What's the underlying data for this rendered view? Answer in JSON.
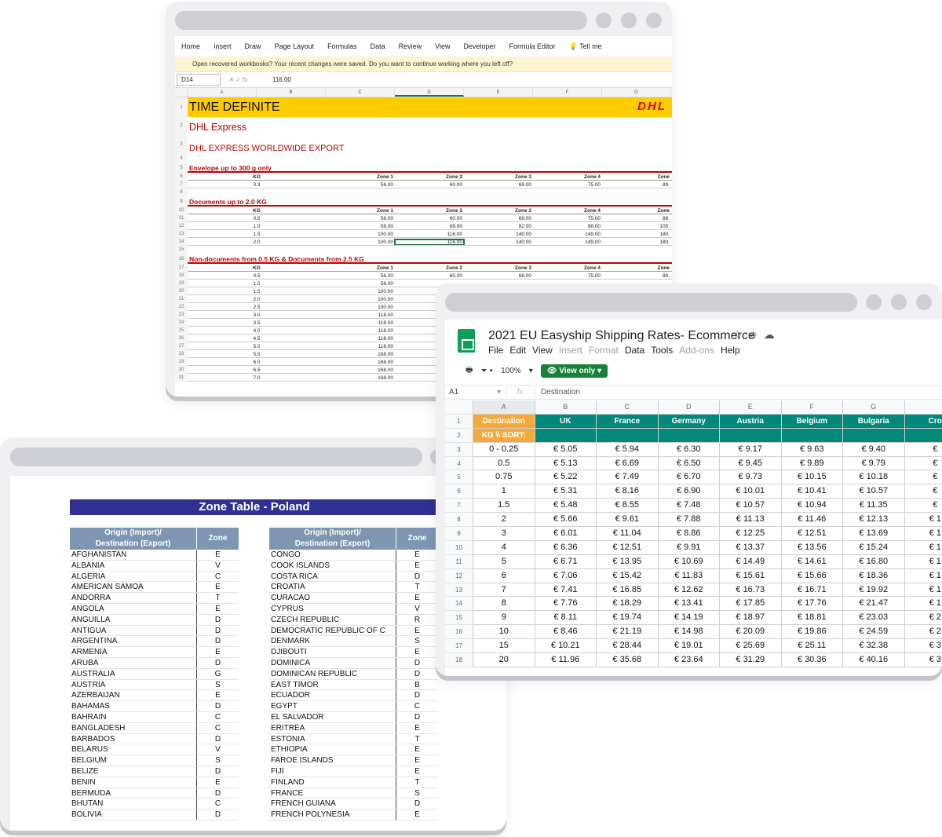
{
  "excel": {
    "ribbon": [
      "Home",
      "Insert",
      "Draw",
      "Page Layout",
      "Formulas",
      "Data",
      "Review",
      "View",
      "Developer",
      "Formula Editor",
      "Tell me"
    ],
    "message": "Open recovered workbooks?  Your recent changes were saved. Do you want to continue working where you left off?",
    "cell_ref": "D14",
    "formula_value": "116.00",
    "columns": [
      "A",
      "B",
      "C",
      "D",
      "E",
      "F",
      "G"
    ],
    "title": "TIME DEFINITE",
    "logo": "DHL",
    "subtitle": "DHL Express",
    "subtitle2": "DHL EXPRESS WORLDWIDE EXPORT",
    "sec1": "Envelope up to 300 g only",
    "sec2": "Documents up to 2.0 KG",
    "sec3": "Non-documents from 0.5 KG & Documents from 2.5 KG",
    "hdr": [
      "KG",
      "Zone 1",
      "Zone 2",
      "Zone 3",
      "Zone 4",
      "Zone"
    ],
    "env_row": [
      "0.3",
      "56.00",
      "60.00",
      "69.00",
      "75.00",
      "89."
    ],
    "doc_rows": [
      [
        "0.5",
        "56.00",
        "60.00",
        "69.00",
        "75.00",
        "89."
      ],
      [
        "1.0",
        "58.00",
        "69.00",
        "82.00",
        "88.00",
        "105."
      ],
      [
        "1.5",
        "100.00",
        "116.00",
        "140.00",
        "149.00",
        "180."
      ],
      [
        "2.0",
        "100.00",
        "116.00",
        "140.00",
        "149.00",
        "180."
      ]
    ],
    "nondoc_first": [
      "0.5",
      "56.00",
      "60.00",
      "69.00",
      "75.00",
      "89."
    ],
    "nondoc_rows": [
      [
        "1.0",
        "58.00"
      ],
      [
        "1.5",
        "100.00"
      ],
      [
        "2.0",
        "100.00"
      ],
      [
        "2.5",
        "100.00"
      ],
      [
        "3.0",
        "118.00"
      ],
      [
        "3.5",
        "118.00"
      ],
      [
        "4.0",
        "118.00"
      ],
      [
        "4.5",
        "118.00"
      ],
      [
        "5.0",
        "118.00"
      ],
      [
        "5.5",
        "168.00"
      ],
      [
        "6.0",
        "168.00"
      ],
      [
        "6.5",
        "168.00"
      ],
      [
        "7.0",
        "168.00"
      ]
    ],
    "row_numbers": [
      "1",
      "2",
      "3",
      "4",
      "5",
      "6",
      "7",
      "8",
      "9",
      "10",
      "11",
      "12",
      "13",
      "14",
      "15",
      "16",
      "17",
      "18",
      "19",
      "20",
      "21",
      "22",
      "23",
      "24",
      "25",
      "26",
      "27",
      "28",
      "29",
      "30",
      "31"
    ]
  },
  "zone": {
    "title": "Zone Table - Poland",
    "header_origin_1": "Origin (Import)/",
    "header_origin_2": "Destination (Export)",
    "header_zone": "Zone",
    "left": [
      [
        "AFGHANISTAN",
        "E"
      ],
      [
        "ALBANIA",
        "V"
      ],
      [
        "ALGERIA",
        "C"
      ],
      [
        "AMERICAN SAMOA",
        "E"
      ],
      [
        "ANDORRA",
        "T"
      ],
      [
        "ANGOLA",
        "E"
      ],
      [
        "ANGUILLA",
        "D"
      ],
      [
        "ANTIGUA",
        "D"
      ],
      [
        "ARGENTINA",
        "D"
      ],
      [
        "ARMENIA",
        "E"
      ],
      [
        "ARUBA",
        "D"
      ],
      [
        "AUSTRALIA",
        "G"
      ],
      [
        "AUSTRIA",
        "S"
      ],
      [
        "AZERBAIJAN",
        "E"
      ],
      [
        "BAHAMAS",
        "D"
      ],
      [
        "BAHRAIN",
        "C"
      ],
      [
        "BANGLADESH",
        "C"
      ],
      [
        "BARBADOS",
        "D"
      ],
      [
        "BELARUS",
        "V"
      ],
      [
        "BELGIUM",
        "S"
      ],
      [
        "BELIZE",
        "D"
      ],
      [
        "BENIN",
        "E"
      ],
      [
        "BERMUDA",
        "D"
      ],
      [
        "BHUTAN",
        "C"
      ],
      [
        "BOLIVIA",
        "D"
      ]
    ],
    "right": [
      [
        "CONGO",
        "E"
      ],
      [
        "COOK ISLANDS",
        "E"
      ],
      [
        "COSTA RICA",
        "D"
      ],
      [
        "CROATIA",
        "T"
      ],
      [
        "CURACAO",
        "E"
      ],
      [
        "CYPRUS",
        "V"
      ],
      [
        "CZECH REPUBLIC",
        "R"
      ],
      [
        "DEMOCRATIC REPUBLIC OF C",
        "E"
      ],
      [
        "DENMARK",
        "S"
      ],
      [
        "DJIBOUTI",
        "E"
      ],
      [
        "DOMINICA",
        "D"
      ],
      [
        "DOMINICAN REPUBLIC",
        "D"
      ],
      [
        "EAST TIMOR",
        "B"
      ],
      [
        "ECUADOR",
        "D"
      ],
      [
        "EGYPT",
        "C"
      ],
      [
        "EL SALVADOR",
        "D"
      ],
      [
        "ERITREA",
        "E"
      ],
      [
        "ESTONIA",
        "T"
      ],
      [
        "ETHIOPIA",
        "E"
      ],
      [
        "FAROE ISLANDS",
        "E"
      ],
      [
        "FIJI",
        "E"
      ],
      [
        "FINLAND",
        "T"
      ],
      [
        "FRANCE",
        "S"
      ],
      [
        "FRENCH GUIANA",
        "D"
      ],
      [
        "FRENCH POLYNESIA",
        "E"
      ]
    ]
  },
  "sheets": {
    "title": "2021 EU Easyship Shipping Rates- Ecommerce",
    "menu": [
      "File",
      "Edit",
      "View",
      "Insert",
      "Format",
      "Data",
      "Tools",
      "Add-ons",
      "Help"
    ],
    "menu_disabled": [
      "Insert",
      "Format",
      "Add-ons"
    ],
    "zoom": "100%",
    "view_only": "View only",
    "cell_ref": "A1",
    "formula_value": "Destination",
    "columns": [
      "A",
      "B",
      "C",
      "D",
      "E",
      "F",
      "G",
      ""
    ],
    "header": [
      "Destination",
      "UK",
      "France",
      "Germany",
      "Austria",
      "Belgium",
      "Bulgaria",
      "Cro"
    ],
    "subheader": "KG  \\\\  SORT:",
    "rows": [
      [
        "0 - 0.25",
        "€ 5.05",
        "€ 5.94",
        "€ 6.30",
        "€ 9.17",
        "€ 9.63",
        "€ 9.40",
        "€"
      ],
      [
        "0.5",
        "€ 5.13",
        "€ 6.69",
        "€ 6.50",
        "€ 9.45",
        "€ 9.89",
        "€ 9.79",
        "€"
      ],
      [
        "0.75",
        "€ 5.22",
        "€ 7.49",
        "€ 6.70",
        "€ 9.73",
        "€ 10.15",
        "€ 10.18",
        "€"
      ],
      [
        "1",
        "€ 5.31",
        "€ 8.16",
        "€ 6.90",
        "€ 10.01",
        "€ 10.41",
        "€ 10.57",
        "€"
      ],
      [
        "1.5",
        "€ 5.48",
        "€ 8.55",
        "€ 7.48",
        "€ 10.57",
        "€ 10.94",
        "€ 11.35",
        "€"
      ],
      [
        "2",
        "€ 5.66",
        "€ 9.61",
        "€ 7.88",
        "€ 11.13",
        "€ 11.46",
        "€ 12.13",
        "€ 1"
      ],
      [
        "3",
        "€ 6.01",
        "€ 11.04",
        "€ 8.86",
        "€ 12.25",
        "€ 12.51",
        "€ 13.69",
        "€ 1"
      ],
      [
        "4",
        "€ 6.36",
        "€ 12.51",
        "€ 9.91",
        "€ 13.37",
        "€ 13.56",
        "€ 15.24",
        "€ 1"
      ],
      [
        "5",
        "€ 6.71",
        "€ 13.95",
        "€ 10.69",
        "€ 14.49",
        "€ 14.61",
        "€ 16.80",
        "€ 1"
      ],
      [
        "6",
        "€ 7.06",
        "€ 15.42",
        "€ 11.83",
        "€ 15.61",
        "€ 15.66",
        "€ 18.36",
        "€ 1"
      ],
      [
        "7",
        "€ 7.41",
        "€ 16.85",
        "€ 12.62",
        "€ 16.73",
        "€ 16.71",
        "€ 19.92",
        "€ 1"
      ],
      [
        "8",
        "€ 7.76",
        "€ 18.29",
        "€ 13.41",
        "€ 17.85",
        "€ 17.76",
        "€ 21.47",
        "€ 1"
      ],
      [
        "9",
        "€ 8.11",
        "€ 19.74",
        "€ 14.19",
        "€ 18.97",
        "€ 18.81",
        "€ 23.03",
        "€ 2"
      ],
      [
        "10",
        "€ 8.46",
        "€ 21.19",
        "€ 14.98",
        "€ 20.09",
        "€ 19.86",
        "€ 24.59",
        "€ 2"
      ],
      [
        "15",
        "€ 10.21",
        "€ 28.44",
        "€ 19.01",
        "€ 25.69",
        "€ 25.11",
        "€ 32.38",
        "€ 3"
      ],
      [
        "20",
        "€ 11.96",
        "€ 35.68",
        "€ 23.64",
        "€ 31.29",
        "€ 30.36",
        "€ 40.16",
        "€ 3"
      ]
    ],
    "row_numbers": [
      "1",
      "2",
      "3",
      "4",
      "5",
      "6",
      "7",
      "8",
      "9",
      "10",
      "11",
      "12",
      "13",
      "14",
      "15",
      "16",
      "17",
      "18"
    ]
  },
  "colors": {
    "dhl_yellow": "#ffcc00",
    "dhl_red": "#d40511",
    "zone_navy": "#2e3192",
    "sheets_teal": "#00897b",
    "sheets_orange": "#f6a93b"
  }
}
